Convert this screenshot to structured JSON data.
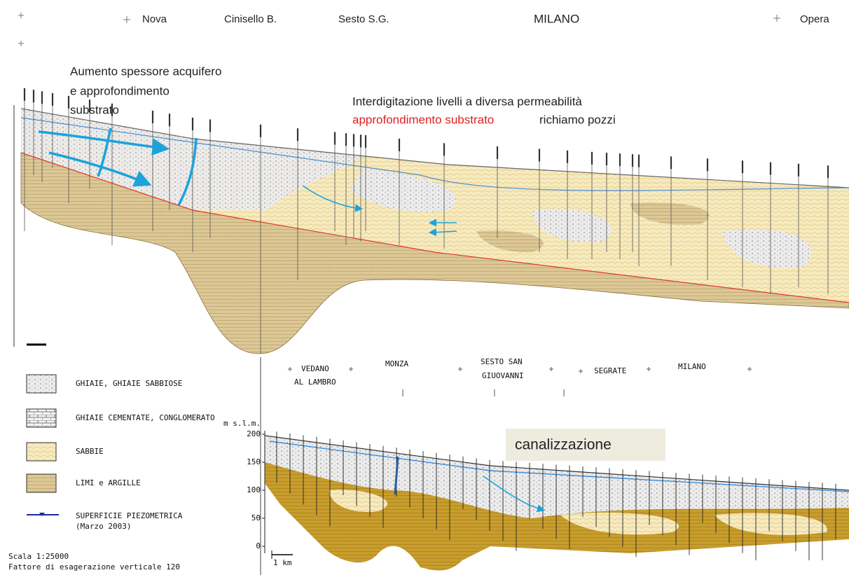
{
  "top_section": {
    "places": [
      "Nova",
      "Cinisello B.",
      "Sesto S.G.",
      "MILANO",
      "Opera"
    ],
    "annotation_left": [
      "Aumento spessore acquifero",
      "e approfondimento",
      "substrato"
    ],
    "annotation_right": {
      "line1": "Interdigitazione livelli a diversa permeabilità",
      "red": "approfondimento substrato",
      "rest": "richiamo pozzi"
    }
  },
  "legend": {
    "items": [
      "GHIAIE, GHIAIE SABBIOSE",
      "GHIAIE CEMENTATE, CONGLOMERATO",
      "SABBIE",
      "LIMI e ARGILLE"
    ],
    "piezometric": [
      "SUPERFICIE PIEZOMETRICA",
      "(Marzo 2003)"
    ],
    "scale": "Scala 1:25000",
    "exaggeration": "Fattore di esagerazione verticale 120"
  },
  "bottom_section": {
    "places": [
      "VEDANO",
      "AL LAMBRO",
      "MONZA",
      "SESTO SAN",
      "GIUOVANNI",
      "SEGRATE",
      "MILANO"
    ],
    "axis_label": "m s.l.m.",
    "ylim": [
      0,
      200
    ],
    "yticks": [
      0,
      50,
      100,
      150,
      200
    ],
    "scale_bar": "1 km",
    "annotation": "canalizzazione"
  }
}
